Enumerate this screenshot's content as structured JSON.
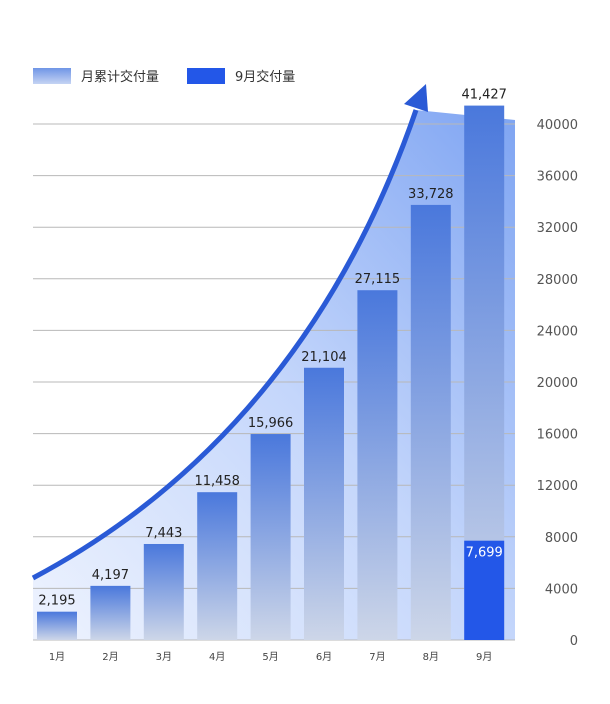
{
  "chart_data": {
    "type": "bar",
    "categories": [
      "1月",
      "2月",
      "3月",
      "4月",
      "5月",
      "6月",
      "7月",
      "8月",
      "9月"
    ],
    "series": [
      {
        "name": "月累计交付量",
        "values": [
          2195,
          4197,
          7443,
          11458,
          15966,
          21104,
          27115,
          33728,
          41427
        ],
        "labels": [
          "2,195",
          "4,197",
          "7,443",
          "11,458",
          "15,966",
          "21,104",
          "27,115",
          "33,728",
          "41,427"
        ]
      },
      {
        "name": "9月交付量",
        "values": [
          null,
          null,
          null,
          null,
          null,
          null,
          null,
          null,
          7699
        ],
        "labels": [
          "",
          "",
          "",
          "",
          "",
          "",
          "",
          "",
          "7,699"
        ]
      }
    ],
    "yticks": [
      "0",
      "4000",
      "8000",
      "12000",
      "16000",
      "20000",
      "24000",
      "28000",
      "32000",
      "36000",
      "40000"
    ],
    "ylim": [
      0,
      40000
    ],
    "y_axis_position": "right",
    "grid": true,
    "legend_position": "top-left",
    "trend_arrow": true,
    "colors": {
      "bar_top": "#4a78dc",
      "bar_bottom": "#cdd6e8",
      "september": "#2357e8",
      "arrow": "#2a5ad6",
      "grid": "#b8b8b8"
    }
  }
}
